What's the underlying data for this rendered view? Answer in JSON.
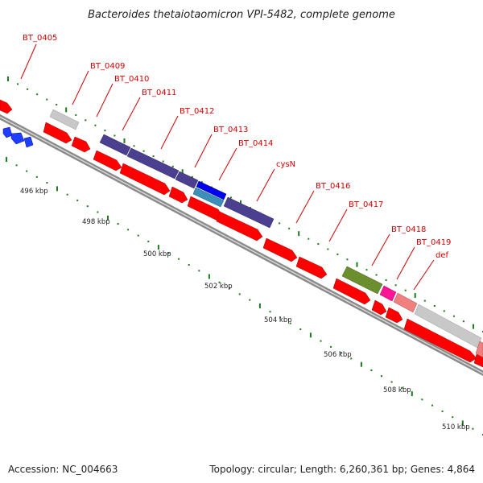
{
  "title": "Bacteroides thetaiotaomicron VPI-5482, complete genome",
  "footer": {
    "accession": "Accession: NC_004663",
    "summary": "Topology: circular; Length: 6,260,361 bp; Genes: 4,864"
  },
  "colors": {
    "backbone": "#7f7f7f",
    "cds": "#ff0000",
    "cds_reverse_small": "#1f3fff",
    "tick": "#1d7a1d",
    "label": "#d40000",
    "feature_purple": "#4b3f8f",
    "feature_blue": "#0000ee",
    "feature_teal": "#3b8fb8",
    "feature_olive": "#6b8f2f",
    "feature_magenta": "#ff1493",
    "feature_pink": "#f08080",
    "feature_gray": "#c8c8c8"
  },
  "gene_labels": [
    {
      "name": "BT_0405"
    },
    {
      "name": "BT_0409"
    },
    {
      "name": "BT_0410"
    },
    {
      "name": "BT_0411"
    },
    {
      "name": "BT_0412"
    },
    {
      "name": "BT_0413"
    },
    {
      "name": "BT_0414"
    },
    {
      "name": "cysN"
    },
    {
      "name": "BT_0416"
    },
    {
      "name": "BT_0417"
    },
    {
      "name": "BT_0418"
    },
    {
      "name": "BT_0419"
    },
    {
      "name": "def"
    }
  ],
  "scale_labels": [
    "496 kbp",
    "498 kbp",
    "500 kbp",
    "502 kbp",
    "504 kbp",
    "506 kbp",
    "508 kbp",
    "510 kbp"
  ]
}
